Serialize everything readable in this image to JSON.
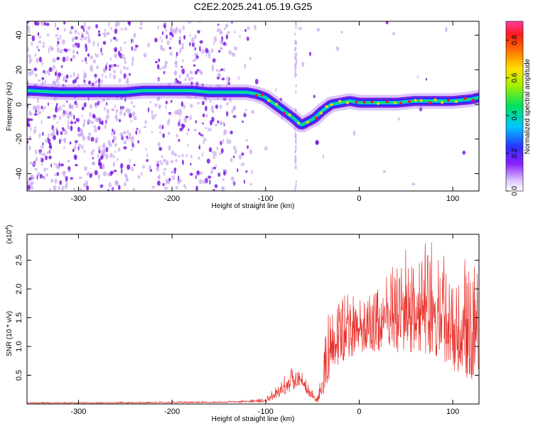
{
  "title": "C2E2.2025.241.05.19.G25",
  "colors": {
    "snr_line": "#e8302a",
    "ridge_core": "#ff1a1a",
    "scatter": "#7b1fe0",
    "scatter_light": "#c9a8f0",
    "background": "#ffffff"
  },
  "chart_data": [
    {
      "type": "heatmap",
      "name": "spectrogram",
      "xlabel": "Height of straight line (km)",
      "ylabel": "Frequency (Hz)",
      "xlim": [
        -355,
        128
      ],
      "ylim": [
        -50,
        48
      ],
      "xticks": [
        -300,
        -200,
        -100,
        0,
        100
      ],
      "yticks": [
        -40,
        -20,
        0,
        20,
        40
      ],
      "ridge": {
        "x": [
          -355,
          -320,
          -280,
          -250,
          -230,
          -200,
          -180,
          -160,
          -140,
          -120,
          -110,
          -100,
          -90,
          -80,
          -70,
          -62,
          -55,
          -48,
          -40,
          -30,
          -20,
          -10,
          0,
          20,
          40,
          60,
          80,
          100,
          120,
          128
        ],
        "y": [
          8,
          7,
          7,
          7,
          8,
          8,
          8,
          7,
          7,
          7,
          6,
          4,
          0,
          -4,
          -8,
          -12,
          -10,
          -8,
          -4,
          0,
          1,
          2,
          1,
          1,
          1,
          2,
          2,
          2,
          3,
          4
        ]
      },
      "colorbar": {
        "label": "Normalized spectral amplitude",
        "ticks": [
          "0.0",
          "0.2",
          "0.4",
          "0.6",
          "0.8"
        ],
        "range": [
          0,
          0.9
        ]
      }
    },
    {
      "type": "line",
      "name": "snr",
      "xlabel": "Height of straight line (km)",
      "ylabel": "SNR (10 * v/v)",
      "scale_label": "(x10",
      "scale_exp": "4",
      "scale_close": ")",
      "xlim": [
        -355,
        128
      ],
      "ylim": [
        0,
        2.95
      ],
      "xticks": [
        -300,
        -200,
        -100,
        0,
        100
      ],
      "yticks": [
        "0.5",
        "1.0",
        "1.5",
        "2.0",
        "2.5"
      ],
      "envelope": {
        "x": [
          -355,
          -250,
          -150,
          -100,
          -90,
          -80,
          -70,
          -62,
          -55,
          -45,
          -40,
          -35,
          -30,
          -25,
          -20,
          -10,
          0,
          10,
          20,
          30,
          40,
          50,
          60,
          70,
          80,
          90,
          100,
          110,
          120,
          128
        ],
        "lo": [
          0.01,
          0.01,
          0.02,
          0.03,
          0.08,
          0.15,
          0.25,
          0.35,
          0.15,
          0.02,
          0.1,
          0.3,
          0.5,
          0.6,
          0.7,
          0.8,
          0.9,
          0.9,
          0.9,
          1.0,
          0.9,
          0.9,
          0.9,
          0.85,
          0.8,
          0.75,
          0.6,
          0.5,
          0.4,
          0.3
        ],
        "hi": [
          0.03,
          0.04,
          0.05,
          0.1,
          0.3,
          0.5,
          0.7,
          0.6,
          0.4,
          0.1,
          0.6,
          1.4,
          1.8,
          1.6,
          1.9,
          2.0,
          2.0,
          1.9,
          2.0,
          2.3,
          2.5,
          2.7,
          2.6,
          2.8,
          2.9,
          2.7,
          2.6,
          2.5,
          2.6,
          2.6
        ]
      }
    }
  ]
}
